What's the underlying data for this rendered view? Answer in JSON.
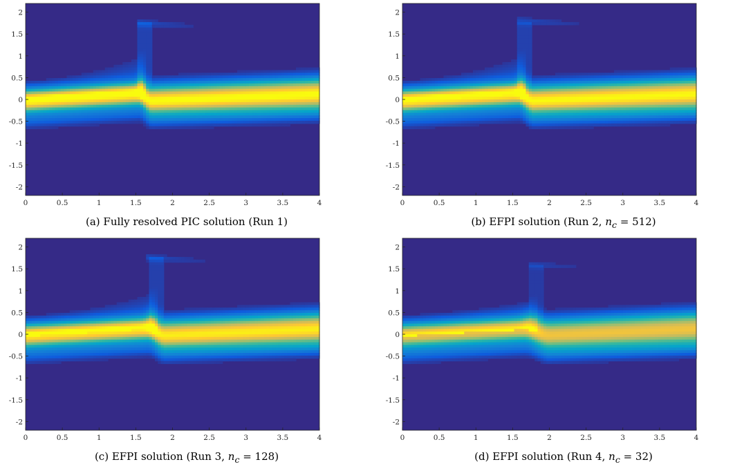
{
  "chart_data": [
    {
      "type": "heatmap",
      "caption": "(a) Fully resolved PIC solution (Run 1)",
      "xlim": [
        0,
        4
      ],
      "ylim": [
        -2.2,
        2.2
      ],
      "x_ticks": [
        "0",
        "0.5",
        "1",
        "1.5",
        "2",
        "2.5",
        "3",
        "3.5",
        "4"
      ],
      "y_ticks": [
        "2",
        "1.5",
        "1",
        "0.5",
        "0",
        "-0.5",
        "-1",
        "-1.5",
        "-2"
      ],
      "colormap": [
        "#352a87",
        "#0f5cdd",
        "#1481d6",
        "#06a4ca",
        "#2eb7a4",
        "#87bf77",
        "#d1bb59",
        "#fec832",
        "#f9fb0e"
      ],
      "background_color": "#352a87",
      "features": {
        "jump_x": 1.6,
        "peak_intensity": 1.0,
        "upper_fringe": 1.15,
        "filament_top_y": 1.75,
        "filament_end_x": 2.7,
        "blur": 0.0
      }
    },
    {
      "type": "heatmap",
      "caption": "(b) EFPI solution (Run 2, n_c = 512)",
      "xlim": [
        0,
        4
      ],
      "ylim": [
        -2.2,
        2.2
      ],
      "x_ticks": [
        "0",
        "0.5",
        "1",
        "1.5",
        "2",
        "2.5",
        "3",
        "3.5",
        "4"
      ],
      "y_ticks": [
        "2",
        "1.5",
        "1",
        "0.5",
        "0",
        "-0.5",
        "-1",
        "-1.5",
        "-2"
      ],
      "colormap": [
        "#352a87",
        "#0f5cdd",
        "#1481d6",
        "#06a4ca",
        "#2eb7a4",
        "#87bf77",
        "#d1bb59",
        "#fec832",
        "#f9fb0e"
      ],
      "background_color": "#352a87",
      "features": {
        "jump_x": 1.65,
        "peak_intensity": 0.98,
        "upper_fringe": 1.15,
        "filament_top_y": 1.8,
        "filament_end_x": 2.9,
        "blur": 0.05
      }
    },
    {
      "type": "heatmap",
      "caption": "(c) EFPI solution (Run 3, n_c = 128)",
      "xlim": [
        0,
        4
      ],
      "ylim": [
        -2.2,
        2.2
      ],
      "x_ticks": [
        "0",
        "0.5",
        "1",
        "1.5",
        "2",
        "2.5",
        "3",
        "3.5",
        "4"
      ],
      "y_ticks": [
        "2",
        "1.5",
        "1",
        "0.5",
        "0",
        "-0.5",
        "-1",
        "-1.5",
        "-2"
      ],
      "colormap": [
        "#352a87",
        "#0f5cdd",
        "#1481d6",
        "#06a4ca",
        "#2eb7a4",
        "#87bf77",
        "#d1bb59",
        "#fec832",
        "#f9fb0e"
      ],
      "background_color": "#352a87",
      "features": {
        "jump_x": 1.75,
        "peak_intensity": 0.95,
        "upper_fringe": 1.1,
        "filament_top_y": 1.75,
        "filament_end_x": 2.9,
        "blur": 0.1
      }
    },
    {
      "type": "heatmap",
      "caption": "(d) EFPI solution (Run 4, n_c = 32)",
      "xlim": [
        0,
        4
      ],
      "ylim": [
        -2.2,
        2.2
      ],
      "x_ticks": [
        "0",
        "0.5",
        "1",
        "1.5",
        "2",
        "2.5",
        "3",
        "3.5",
        "4"
      ],
      "y_ticks": [
        "2",
        "1.5",
        "1",
        "0.5",
        "0",
        "-0.5",
        "-1",
        "-1.5",
        "-2"
      ],
      "colormap": [
        "#352a87",
        "#0f5cdd",
        "#1481d6",
        "#06a4ca",
        "#2eb7a4",
        "#87bf77",
        "#d1bb59",
        "#fec832",
        "#f9fb0e"
      ],
      "background_color": "#352a87",
      "features": {
        "jump_x": 1.8,
        "peak_intensity": 0.82,
        "upper_fringe": 0.9,
        "filament_top_y": 1.6,
        "filament_end_x": 3.0,
        "blur": 0.3
      }
    }
  ],
  "captions": {
    "a": {
      "text": "(a) Fully resolved PIC solution (Run 1)"
    },
    "b": {
      "prefix": "(b) EFPI solution (Run 2, ",
      "math_var": "n",
      "math_sub": "c",
      "suffix": " = 512)"
    },
    "c": {
      "prefix": "(c) EFPI solution (Run 3, ",
      "math_var": "n",
      "math_sub": "c",
      "suffix": " = 128)"
    },
    "d": {
      "prefix": "(d) EFPI solution (Run 4, ",
      "math_var": "n",
      "math_sub": "c",
      "suffix": " = 32)"
    }
  }
}
